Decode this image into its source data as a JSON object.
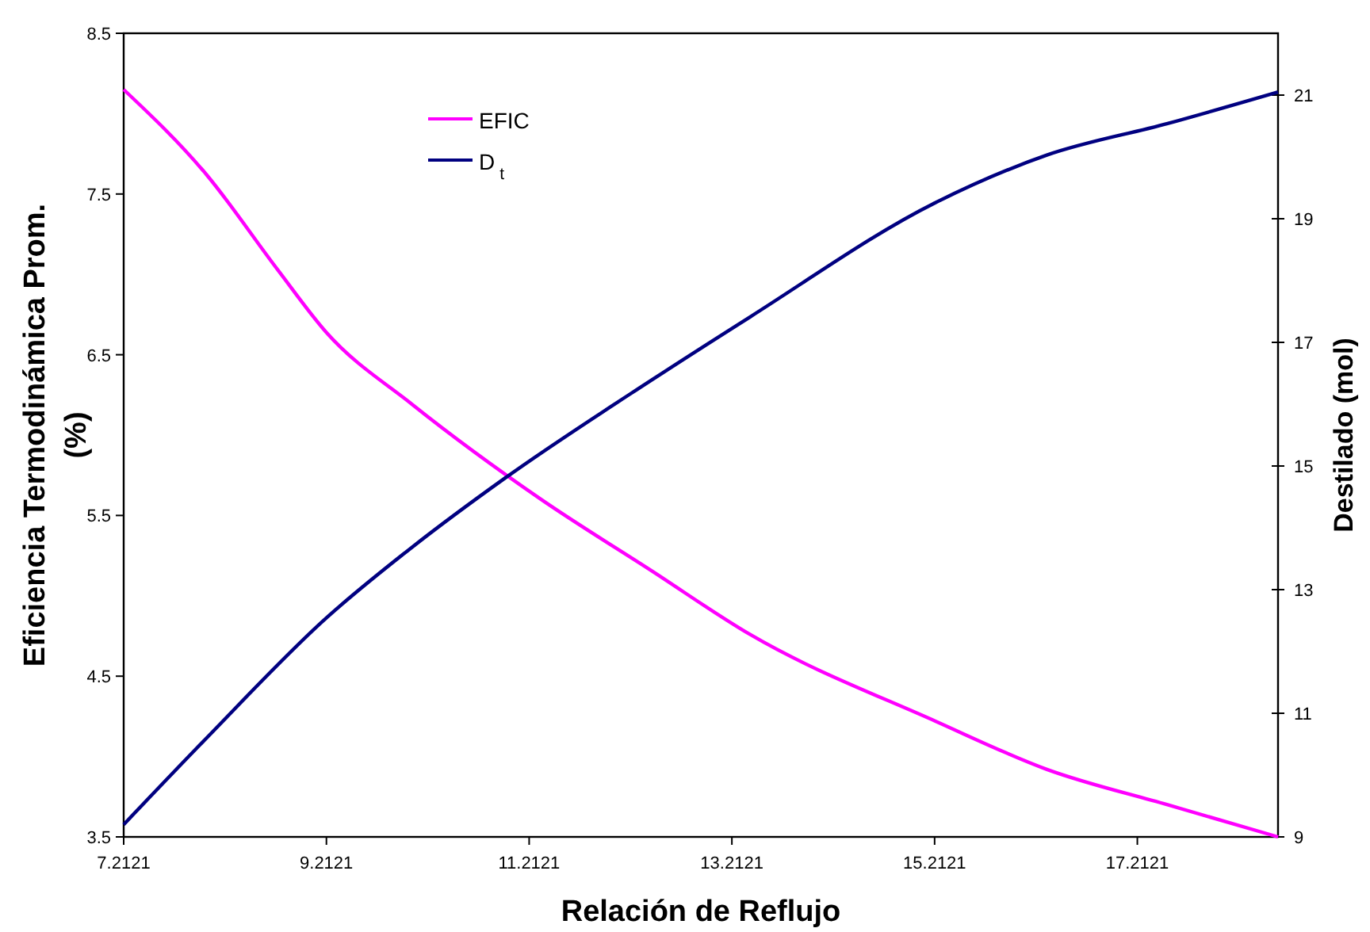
{
  "chart_data": {
    "type": "line",
    "xlabel": "Relación de Reflujo",
    "ylabel": "Eficiencia Termodinámica Prom. (%)",
    "y2label": "Destilado (mol)",
    "xlim": [
      7.2121,
      18.6
    ],
    "xticks": [
      7.2121,
      9.2121,
      11.2121,
      13.2121,
      15.2121,
      17.2121
    ],
    "ylim": [
      3.5,
      8.5
    ],
    "yticks": [
      3.5,
      4.5,
      5.5,
      6.5,
      7.5,
      8.5
    ],
    "y2lim": [
      9,
      22
    ],
    "y2ticks": [
      9,
      11,
      13,
      15,
      17,
      19,
      21
    ],
    "legend": "top left",
    "grid": false,
    "marker": "none",
    "line_style": "solid",
    "series": [
      {
        "name": "EFIC",
        "color": "#ff00ff",
        "x": [
          7.2121,
          8.03,
          8.73,
          9.21,
          10.06,
          11.33,
          12.41,
          13.39,
          15.22,
          16.32,
          17.51,
          18.6
        ],
        "values": [
          8.15,
          7.62,
          7.03,
          6.64,
          6.19,
          5.6,
          5.16,
          4.76,
          4.22,
          3.92,
          3.7,
          3.5
        ]
      },
      {
        "name": "D$_{t}$",
        "color": "#000080",
        "axis": "y2",
        "x": [
          7.2121,
          8.03,
          9.21,
          10.06,
          10.97,
          12.41,
          13.39,
          15.22,
          16.32,
          17.51,
          18.6
        ],
        "values": [
          9.2,
          10.6,
          12.54,
          13.69,
          14.8,
          16.38,
          17.41,
          19.26,
          20.03,
          20.54,
          21.05
        ]
      }
    ]
  }
}
